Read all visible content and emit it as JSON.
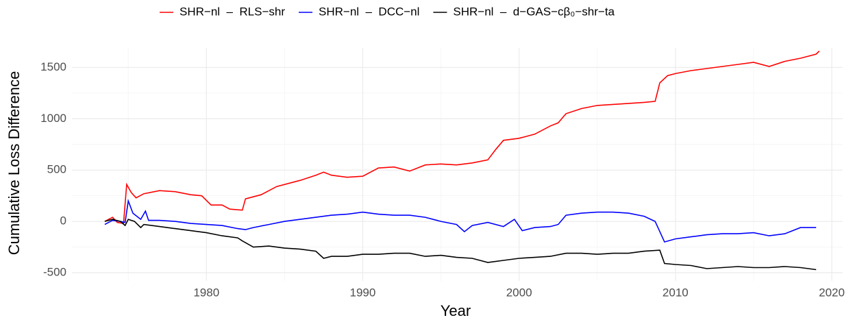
{
  "chart_data": {
    "type": "line",
    "x_label": "Year",
    "y_label": "Cumulative Loss Difference",
    "xlim": [
      1971.4,
      2020.7
    ],
    "xticks": [
      1980,
      1990,
      2000,
      2010,
      2020
    ],
    "ylim": [
      -580,
      1690
    ],
    "yticks": [
      -500,
      0,
      500,
      1000,
      1500
    ],
    "grid": true,
    "legend": "top",
    "series": [
      {
        "name": "SHR−nl  –  RLS−shr",
        "color": "#ff0000",
        "x": [
          1973.5,
          1974,
          1974.3,
          1974.7,
          1974.9,
          1975.2,
          1975.5,
          1976,
          1977,
          1978,
          1979,
          1979.7,
          1980.3,
          1981,
          1981.5,
          1982.3,
          1982.5,
          1983.5,
          1984.5,
          1985.5,
          1986,
          1987,
          1987.5,
          1988,
          1989,
          1990,
          1991,
          1992,
          1993,
          1994,
          1995,
          1996,
          1997,
          1998,
          1998.5,
          1999,
          2000,
          2001,
          2002,
          2002.5,
          2003,
          2004,
          2005,
          2006,
          2007,
          2008,
          2008.7,
          2009,
          2009.5,
          2010,
          2011,
          2012,
          2013,
          2014,
          2015,
          2016,
          2017,
          2018,
          2019,
          2019.2
        ],
        "values": [
          0,
          40,
          -10,
          -20,
          360,
          280,
          230,
          270,
          300,
          290,
          260,
          250,
          160,
          160,
          120,
          110,
          220,
          260,
          340,
          380,
          400,
          450,
          480,
          450,
          430,
          440,
          520,
          530,
          490,
          550,
          560,
          550,
          570,
          600,
          700,
          790,
          810,
          850,
          930,
          960,
          1050,
          1100,
          1130,
          1140,
          1150,
          1160,
          1170,
          1350,
          1420,
          1440,
          1470,
          1490,
          1510,
          1530,
          1550,
          1510,
          1560,
          1590,
          1630,
          1660
        ]
      },
      {
        "name": "SHR−nl  –  DCC−nl",
        "color": "#0000ff",
        "x": [
          1973.5,
          1974,
          1974.5,
          1974.8,
          1975,
          1975.3,
          1975.8,
          1976.1,
          1976.3,
          1977,
          1978,
          1979,
          1980,
          1981,
          1982,
          1982.5,
          1983,
          1984,
          1985,
          1986,
          1987,
          1988,
          1989,
          1990,
          1991,
          1992,
          1993,
          1994,
          1995,
          1996,
          1996.5,
          1997,
          1998,
          1999,
          1999.7,
          2000.2,
          2001,
          2002,
          2002.5,
          2003,
          2004,
          2005,
          2006,
          2007,
          2008,
          2008.7,
          2009.3,
          2010,
          2011,
          2012,
          2013,
          2014,
          2015,
          2016,
          2017,
          2018,
          2019
        ],
        "values": [
          -30,
          10,
          0,
          -10,
          200,
          80,
          20,
          100,
          10,
          10,
          0,
          -20,
          -30,
          -40,
          -70,
          -80,
          -60,
          -30,
          0,
          20,
          40,
          60,
          70,
          90,
          70,
          60,
          60,
          40,
          0,
          -30,
          -100,
          -40,
          -10,
          -50,
          20,
          -90,
          -60,
          -50,
          -30,
          60,
          80,
          90,
          90,
          80,
          50,
          0,
          -200,
          -170,
          -150,
          -130,
          -120,
          -120,
          -110,
          -140,
          -120,
          -60,
          -60
        ]
      },
      {
        "name": "SHR−nl  –  d−GAS−cβ₀−shr−ta",
        "color": "#000000",
        "x": [
          1973.5,
          1974,
          1974.5,
          1974.8,
          1975,
          1975.4,
          1975.8,
          1976,
          1977,
          1978,
          1979,
          1980,
          1981,
          1982,
          1982.3,
          1983,
          1984,
          1985,
          1986,
          1987,
          1987.5,
          1988,
          1989,
          1990,
          1991,
          1992,
          1993,
          1994,
          1995,
          1996,
          1997,
          1998,
          1999,
          2000,
          2001,
          2002,
          2003,
          2004,
          2005,
          2006,
          2007,
          2008,
          2009,
          2009.3,
          2010,
          2011,
          2012,
          2013,
          2014,
          2015,
          2016,
          2017,
          2018,
          2019
        ],
        "values": [
          0,
          20,
          0,
          -40,
          20,
          0,
          -60,
          -30,
          -50,
          -70,
          -90,
          -110,
          -140,
          -160,
          -190,
          -250,
          -240,
          -260,
          -270,
          -290,
          -360,
          -340,
          -340,
          -320,
          -320,
          -310,
          -310,
          -340,
          -330,
          -350,
          -360,
          -400,
          -380,
          -360,
          -350,
          -340,
          -310,
          -310,
          -320,
          -310,
          -310,
          -290,
          -280,
          -410,
          -420,
          -430,
          -460,
          -450,
          -440,
          -450,
          -450,
          -440,
          -450,
          -470
        ]
      }
    ]
  }
}
